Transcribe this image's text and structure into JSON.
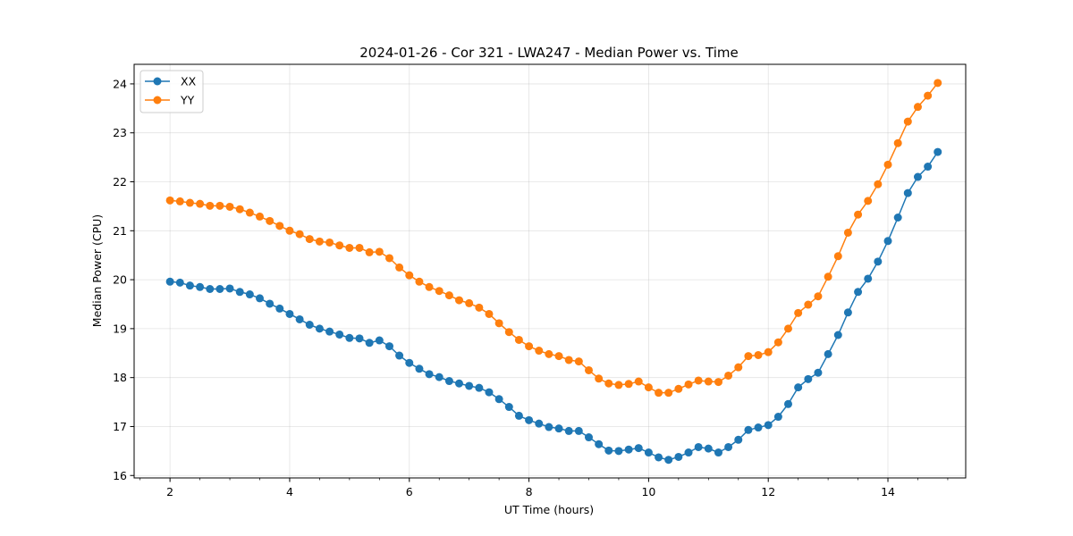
{
  "chart_data": {
    "type": "line",
    "title": "2024-01-26 - Cor 321 - LWA247 - Median Power vs. Time",
    "xlabel": "UT Time (hours)",
    "ylabel": "Median Power (CPU)",
    "xlim": [
      1.4,
      15.3
    ],
    "ylim": [
      15.95,
      24.4
    ],
    "xticks": [
      2,
      4,
      6,
      8,
      10,
      12,
      14
    ],
    "xtick_labels": [
      "2",
      "4",
      "6",
      "8",
      "10",
      "12",
      "14"
    ],
    "yticks": [
      16,
      17,
      18,
      19,
      20,
      21,
      22,
      23,
      24
    ],
    "ytick_labels": [
      "16",
      "17",
      "18",
      "19",
      "20",
      "21",
      "22",
      "23",
      "24"
    ],
    "grid": true,
    "legend_position": "upper-left",
    "x": [
      2.0,
      2.167,
      2.333,
      2.5,
      2.667,
      2.833,
      3.0,
      3.167,
      3.333,
      3.5,
      3.667,
      3.833,
      4.0,
      4.167,
      4.333,
      4.5,
      4.667,
      4.833,
      5.0,
      5.167,
      5.333,
      5.5,
      5.667,
      5.833,
      6.0,
      6.167,
      6.333,
      6.5,
      6.667,
      6.833,
      7.0,
      7.167,
      7.333,
      7.5,
      7.667,
      7.833,
      8.0,
      8.167,
      8.333,
      8.5,
      8.667,
      8.833,
      9.0,
      9.167,
      9.333,
      9.5,
      9.667,
      9.833,
      10.0,
      10.167,
      10.333,
      10.5,
      10.667,
      10.833,
      11.0,
      11.167,
      11.333,
      11.5,
      11.667,
      11.833,
      12.0,
      12.167,
      12.333,
      12.5,
      12.667,
      12.833,
      13.0,
      13.167,
      13.333,
      13.5,
      13.667,
      13.833,
      14.0,
      14.167,
      14.333,
      14.5,
      14.667,
      14.833
    ],
    "series": [
      {
        "name": "XX",
        "color": "#1f77b4",
        "values": [
          19.96,
          19.94,
          19.88,
          19.85,
          19.81,
          19.81,
          19.82,
          19.75,
          19.7,
          19.62,
          19.51,
          19.41,
          19.3,
          19.19,
          19.08,
          19.0,
          18.94,
          18.88,
          18.81,
          18.8,
          18.71,
          18.76,
          18.64,
          18.45,
          18.3,
          18.18,
          18.07,
          18.01,
          17.93,
          17.88,
          17.83,
          17.79,
          17.7,
          17.56,
          17.4,
          17.22,
          17.13,
          17.06,
          16.99,
          16.96,
          16.91,
          16.91,
          16.78,
          16.64,
          16.51,
          16.5,
          16.53,
          16.56,
          16.47,
          16.37,
          16.32,
          16.38,
          16.47,
          16.58,
          16.55,
          16.47,
          16.58,
          16.73,
          16.93,
          16.98,
          17.03,
          17.2,
          17.46,
          17.8,
          17.97,
          18.1,
          18.48,
          18.87,
          19.33,
          19.75,
          20.02,
          20.37,
          20.79,
          21.27,
          21.77,
          22.1,
          22.31,
          22.61
        ]
      },
      {
        "name": "YY",
        "color": "#ff7f0e",
        "values": [
          21.62,
          21.6,
          21.57,
          21.55,
          21.51,
          21.51,
          21.49,
          21.44,
          21.37,
          21.29,
          21.2,
          21.1,
          21.0,
          20.93,
          20.83,
          20.78,
          20.76,
          20.7,
          20.65,
          20.65,
          20.56,
          20.57,
          20.44,
          20.25,
          20.09,
          19.96,
          19.85,
          19.77,
          19.68,
          19.58,
          19.52,
          19.43,
          19.3,
          19.11,
          18.93,
          18.77,
          18.64,
          18.55,
          18.48,
          18.44,
          18.36,
          18.33,
          18.15,
          17.98,
          17.88,
          17.85,
          17.87,
          17.92,
          17.8,
          17.69,
          17.69,
          17.77,
          17.86,
          17.94,
          17.92,
          17.91,
          18.04,
          18.21,
          18.44,
          18.46,
          18.52,
          18.72,
          19.0,
          19.32,
          19.49,
          19.66,
          20.06,
          20.48,
          20.96,
          21.33,
          21.61,
          21.95,
          22.35,
          22.79,
          23.23,
          23.53,
          23.76,
          24.02
        ]
      }
    ]
  }
}
